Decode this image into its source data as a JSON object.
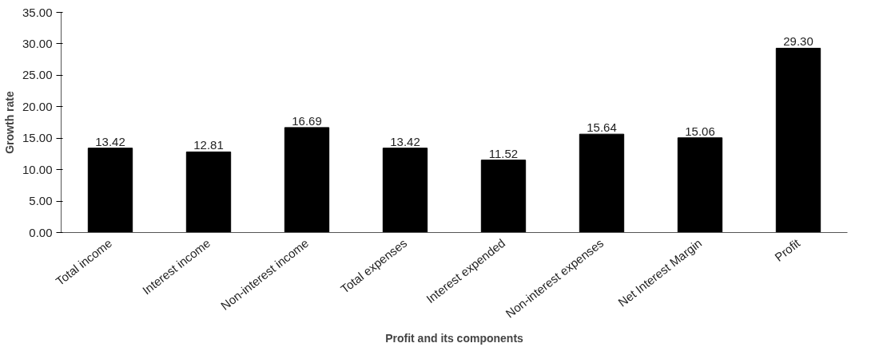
{
  "chart_data": {
    "type": "bar",
    "xlabel": "Profit and its components",
    "ylabel": "Growth rate",
    "categories": [
      "Total income",
      "Interest income",
      "Non-interest income",
      "Total expenses",
      "Interest expended",
      "Non-interest expenses",
      "Net Interest Margin",
      "Profit"
    ],
    "values": [
      13.42,
      12.81,
      16.69,
      13.42,
      11.52,
      15.64,
      15.06,
      29.3
    ],
    "value_labels": [
      "13.42",
      "12.81",
      "16.69",
      "13.42",
      "11.52",
      "15.64",
      "15.06",
      "29.30"
    ],
    "color": "#000000",
    "ylim": [
      0,
      35
    ],
    "yticks": [
      {
        "value": 0,
        "label": "0.00"
      },
      {
        "value": 5,
        "label": "5.00"
      },
      {
        "value": 10,
        "label": "10.00"
      },
      {
        "value": 15,
        "label": "15.00"
      },
      {
        "value": 20,
        "label": "20.00"
      },
      {
        "value": 25,
        "label": "25.00"
      },
      {
        "value": 30,
        "label": "30.00"
      },
      {
        "value": 35,
        "label": "35.00"
      }
    ],
    "grid": false
  }
}
